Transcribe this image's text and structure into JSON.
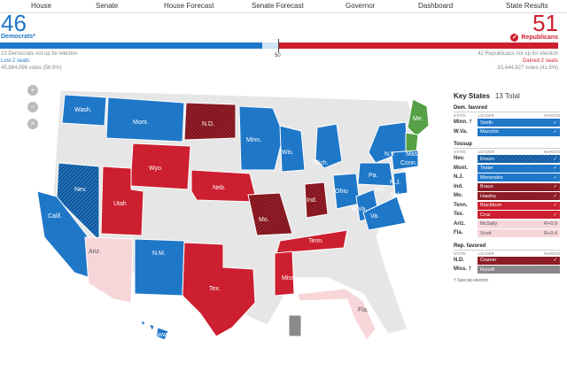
{
  "nav": [
    "House",
    "Senate",
    "House Forecast",
    "Senate Forecast",
    "Governor",
    "Dashboard",
    "State Results"
  ],
  "dem": {
    "seats": "46",
    "label": "Democrats*",
    "not_up": "23 Democrats not up for election",
    "change": "Lost 2 seats",
    "votes": "45,884,096 votes (56.9%)",
    "color": "#1f77c8"
  },
  "rep": {
    "seats": "51",
    "label": "Republicans",
    "not_up": "42 Republicans not up for election",
    "change": "Gained 2 seats",
    "votes": "33,444,927 votes (41.5%)",
    "color": "#cc1f2f"
  },
  "majority_mark": "50",
  "zoom": {
    "in": "+",
    "out": "−",
    "reset": "×"
  },
  "map_labels": [
    "Wash.",
    "Mont.",
    "N.D.",
    "Minn.",
    "Me.",
    "Wyo.",
    "Nev.",
    "Utah",
    "Neb.",
    "Wis.",
    "Mich.",
    "N.Y.",
    "Pa.",
    "Mass.",
    "Conn.",
    "Ohio",
    "Ind.",
    "W.Va.",
    "Va.",
    "Md.",
    "Del.",
    "N.J.",
    "Calif.",
    "Mo.",
    "Ariz.",
    "N.M.",
    "Tenn.",
    "Tex.",
    "Miss.",
    "Fla.",
    "Hawaii"
  ],
  "key_states": {
    "title": "Key States",
    "total": "13 Total",
    "col_state": "STATE",
    "col_leader": "LEADER",
    "col_margin": "MARGIN",
    "sections": [
      {
        "title": "Dem. favored",
        "rows": [
          {
            "state": "Minn. †",
            "leader": "Smith",
            "margin": "✓",
            "style": "d"
          },
          {
            "state": "W.Va.",
            "leader": "Manchin",
            "margin": "✓",
            "style": "d"
          }
        ]
      },
      {
        "title": "Tossup",
        "rows": [
          {
            "state": "Nev.",
            "leader": "Rosen",
            "margin": "✓",
            "style": "dh"
          },
          {
            "state": "Mont.",
            "leader": "Tester",
            "margin": "✓",
            "style": "d"
          },
          {
            "state": "N.J.",
            "leader": "Menendez",
            "margin": "✓",
            "style": "d"
          },
          {
            "state": "Ind.",
            "leader": "Braun",
            "margin": "✓",
            "style": "rh"
          },
          {
            "state": "Mo.",
            "leader": "Hawley",
            "margin": "✓",
            "style": "rh"
          },
          {
            "state": "Tenn.",
            "leader": "Blackburn",
            "margin": "✓",
            "style": "r"
          },
          {
            "state": "Tex.",
            "leader": "Cruz",
            "margin": "✓",
            "style": "r"
          },
          {
            "state": "Ariz.",
            "leader": "McSally",
            "margin": "R+0.9",
            "style": "lr"
          },
          {
            "state": "Fla.",
            "leader": "Scott",
            "margin": "R+0.4",
            "style": "lr"
          }
        ]
      },
      {
        "title": "Rep. favored",
        "rows": [
          {
            "state": "N.D.",
            "leader": "Cramer",
            "margin": "✓",
            "style": "rh"
          },
          {
            "state": "Miss. †",
            "leader": "Runoff",
            "margin": "",
            "style": "gy"
          }
        ]
      }
    ],
    "footnote": "† Special election"
  }
}
